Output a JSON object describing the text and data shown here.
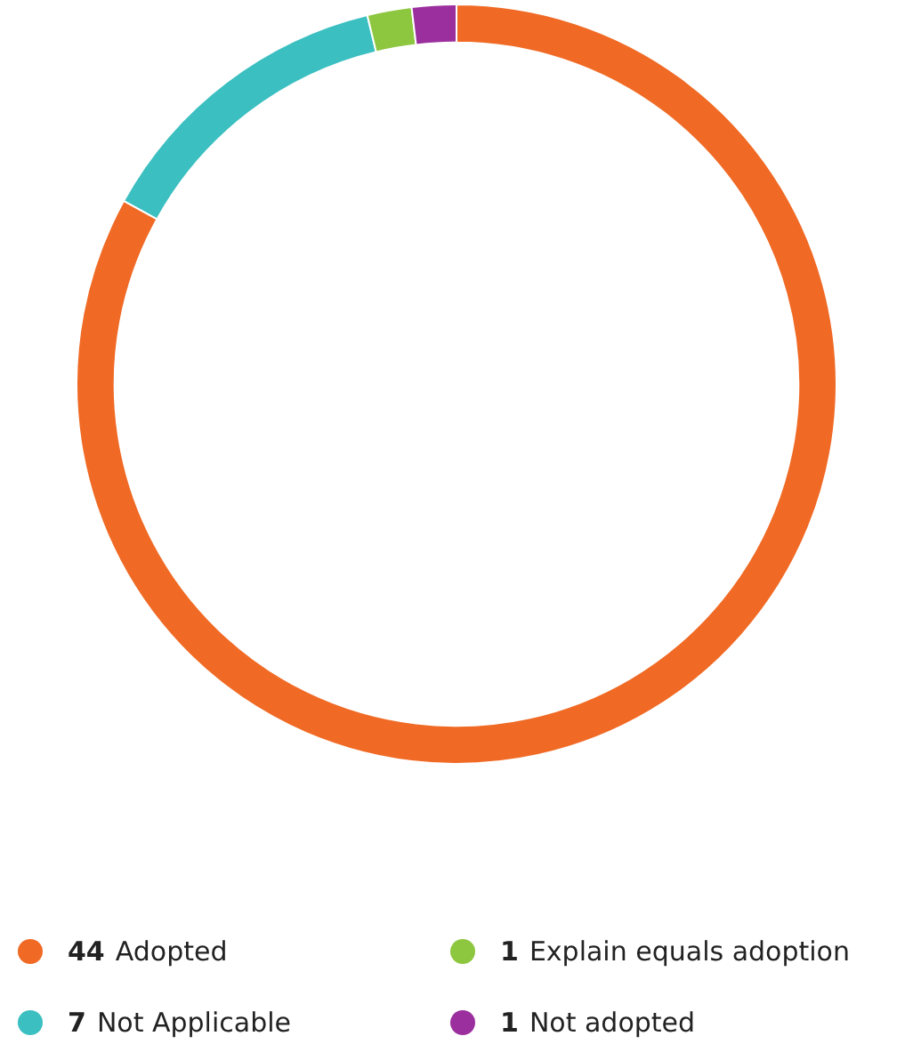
{
  "chart_data": {
    "type": "donut",
    "categories": [
      "Adopted",
      "Not Applicable",
      "Explain equals adoption",
      "Not adopted"
    ],
    "values": [
      44,
      7,
      1,
      1
    ],
    "colors": [
      "#f06a25",
      "#3bbfc1",
      "#8dc63f",
      "#9b2f9e"
    ],
    "legend": "bottom",
    "data_labels": true
  }
}
